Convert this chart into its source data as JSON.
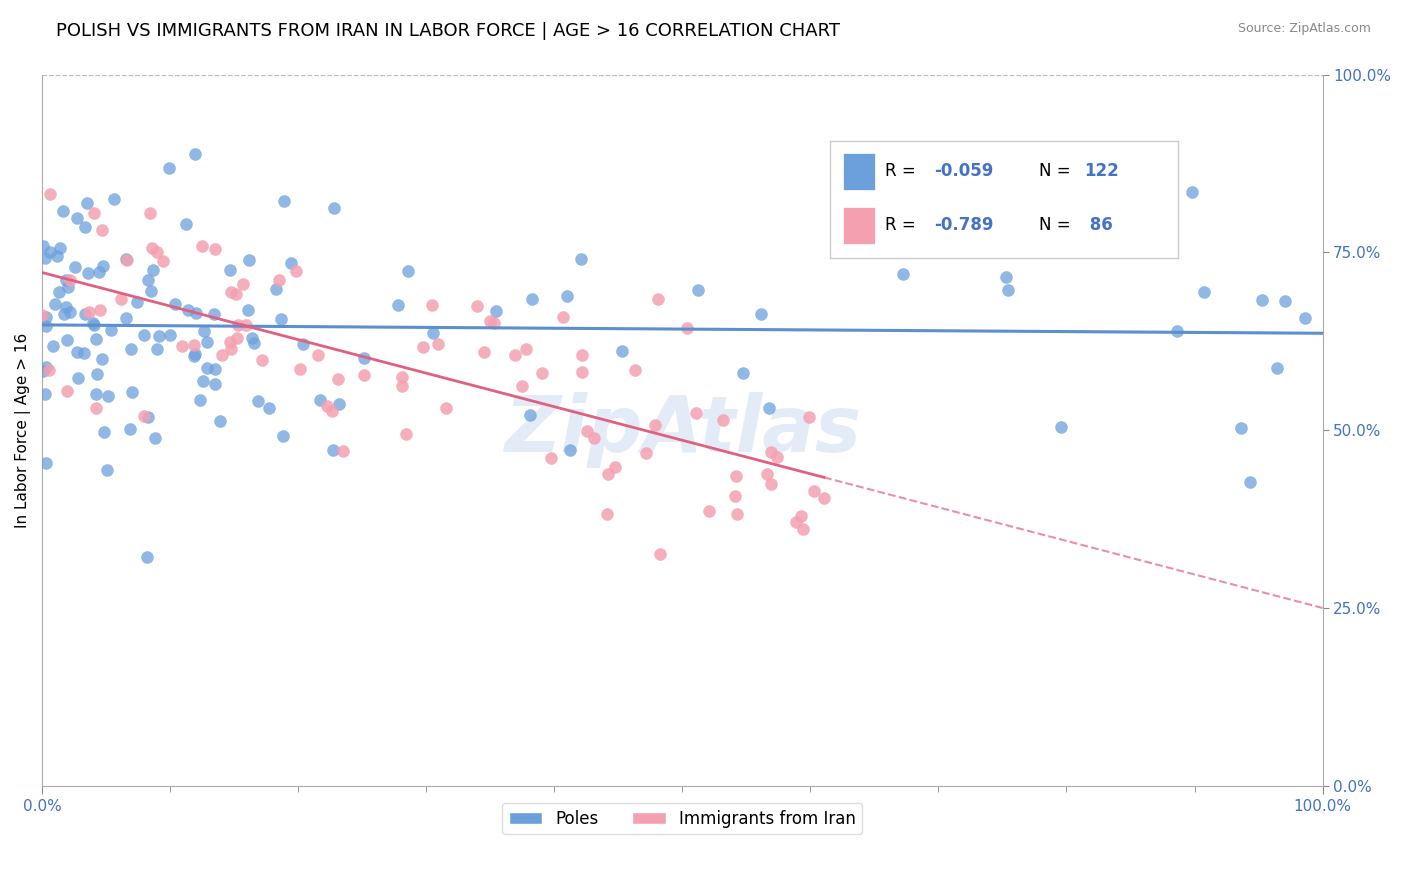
{
  "title": "POLISH VS IMMIGRANTS FROM IRAN IN LABOR FORCE | AGE > 16 CORRELATION CHART",
  "source": "Source: ZipAtlas.com",
  "ylabel": "In Labor Force | Age > 16",
  "x_tick_labels": [
    "0.0%",
    "100.0%"
  ],
  "y_tick_labels": [
    "0.0%",
    "25.0%",
    "50.0%",
    "75.0%",
    "100.0%"
  ],
  "y_tick_positions": [
    0.0,
    0.25,
    0.5,
    0.75,
    1.0
  ],
  "r1": -0.059,
  "r2": -0.789,
  "n1": 122,
  "n2": 86,
  "color_poles": "#6ca0dc",
  "color_iran": "#f4a0b0",
  "color_line_poles": "#5b8fd0",
  "color_line_iran": "#e06080",
  "watermark": "ZipAtlas",
  "title_fontsize": 13,
  "axis_label_fontsize": 11,
  "tick_fontsize": 11,
  "legend_fontsize": 13
}
